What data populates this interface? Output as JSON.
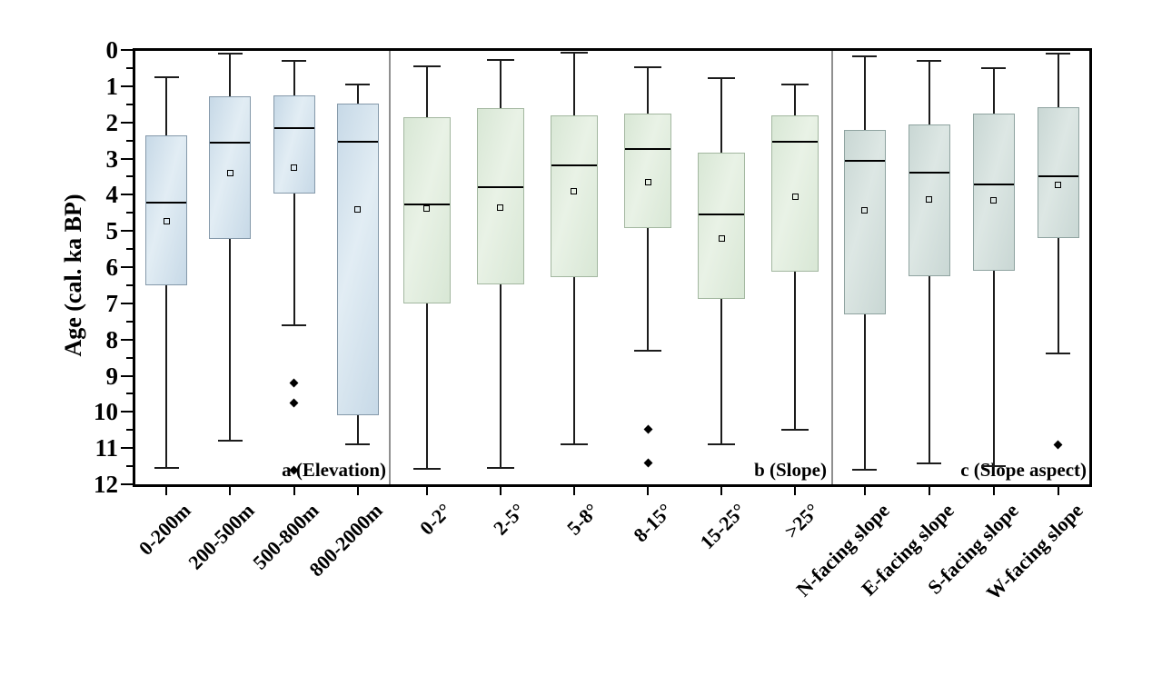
{
  "chart_data": {
    "type": "box",
    "title": "",
    "ylabel": "Age (cal. ka BP)",
    "y_axis": {
      "min": 0,
      "max": 12,
      "inverted_depth_style": true,
      "major_tick_step": 1,
      "minor_tick_step": 0.5,
      "major_tick_labels": [
        "0",
        "1",
        "2",
        "3",
        "4",
        "5",
        "6",
        "7",
        "8",
        "9",
        "10",
        "11",
        "12"
      ]
    },
    "markers": {
      "mean": "open-square",
      "outlier": "filled-diamond",
      "median": "horizontal-line"
    },
    "panels": [
      {
        "id": "a",
        "label": "a (Elevation)",
        "fill": "#c7d9e7",
        "fill_light": "#e2edf4",
        "edge": "#8599aa",
        "categories": [
          "0-200m",
          "200-500m",
          "500-800m",
          "800-2000m"
        ],
        "boxes": [
          {
            "category": "0-200m",
            "whisker_top": 0.75,
            "box_top": 2.37,
            "median": 4.21,
            "mean": 4.74,
            "box_bottom": 6.5,
            "whisker_bottom": 11.56,
            "outliers": []
          },
          {
            "category": "200-500m",
            "whisker_top": 0.11,
            "box_top": 1.27,
            "median": 2.56,
            "mean": 3.39,
            "box_bottom": 5.21,
            "whisker_bottom": 10.8,
            "outliers": []
          },
          {
            "category": "500-800m",
            "whisker_top": 0.29,
            "box_top": 1.26,
            "median": 2.15,
            "mean": 3.26,
            "box_bottom": 3.97,
            "whisker_bottom": 7.61,
            "outliers": [
              9.2,
              9.76,
              11.61
            ]
          },
          {
            "category": "800-2000m",
            "whisker_top": 0.95,
            "box_top": 1.49,
            "median": 2.53,
            "mean": 4.41,
            "box_bottom": 10.08,
            "whisker_bottom": 10.89,
            "outliers": []
          }
        ]
      },
      {
        "id": "b",
        "label": "b (Slope)",
        "fill": "#d8e7d5",
        "fill_light": "#e9f2e6",
        "edge": "#a3b7a0",
        "categories": [
          "0-2°",
          "2-5°",
          "5-8°",
          "8-15°",
          "15-25°",
          ">25°"
        ],
        "boxes": [
          {
            "category": "0-2°",
            "whisker_top": 0.46,
            "box_top": 1.86,
            "median": 4.28,
            "mean": 4.37,
            "box_bottom": 7.0,
            "whisker_bottom": 11.57,
            "outliers": []
          },
          {
            "category": "2-5°",
            "whisker_top": 0.28,
            "box_top": 1.61,
            "median": 3.79,
            "mean": 4.35,
            "box_bottom": 6.48,
            "whisker_bottom": 11.56,
            "outliers": []
          },
          {
            "category": "5-8°",
            "whisker_top": 0.08,
            "box_top": 1.81,
            "median": 3.2,
            "mean": 3.91,
            "box_bottom": 6.27,
            "whisker_bottom": 10.89,
            "outliers": []
          },
          {
            "category": "8-15°",
            "whisker_top": 0.48,
            "box_top": 1.76,
            "median": 2.73,
            "mean": 3.65,
            "box_bottom": 4.93,
            "whisker_bottom": 8.32,
            "outliers": [
              10.49,
              11.41
            ]
          },
          {
            "category": "15-25°",
            "whisker_top": 0.79,
            "box_top": 2.84,
            "median": 4.54,
            "mean": 5.21,
            "box_bottom": 6.88,
            "whisker_bottom": 10.89,
            "outliers": []
          },
          {
            "category": ">25°",
            "whisker_top": 0.95,
            "box_top": 1.81,
            "median": 2.53,
            "mean": 4.06,
            "box_bottom": 6.12,
            "whisker_bottom": 10.5,
            "outliers": []
          }
        ]
      },
      {
        "id": "c",
        "label": "c (Slope aspect)",
        "fill": "#c9d7d4",
        "fill_light": "#dde7e4",
        "edge": "#8fa3a0",
        "categories": [
          "N-facing slope",
          "E-facing slope",
          "S-facing slope",
          "W-facing slope"
        ],
        "boxes": [
          {
            "category": "N-facing slope",
            "whisker_top": 0.17,
            "box_top": 2.21,
            "median": 3.07,
            "mean": 4.43,
            "box_bottom": 7.3,
            "whisker_bottom": 11.6,
            "outliers": []
          },
          {
            "category": "E-facing slope",
            "whisker_top": 0.29,
            "box_top": 2.07,
            "median": 3.39,
            "mean": 4.12,
            "box_bottom": 6.25,
            "whisker_bottom": 11.43,
            "outliers": []
          },
          {
            "category": "S-facing slope",
            "whisker_top": 0.5,
            "box_top": 1.76,
            "median": 3.72,
            "mean": 4.16,
            "box_bottom": 6.1,
            "whisker_bottom": 11.5,
            "outliers": []
          },
          {
            "category": "W-facing slope",
            "whisker_top": 0.11,
            "box_top": 1.57,
            "median": 3.49,
            "mean": 3.74,
            "box_bottom": 5.19,
            "whisker_bottom": 8.38,
            "outliers": [
              10.9
            ]
          }
        ]
      }
    ]
  }
}
